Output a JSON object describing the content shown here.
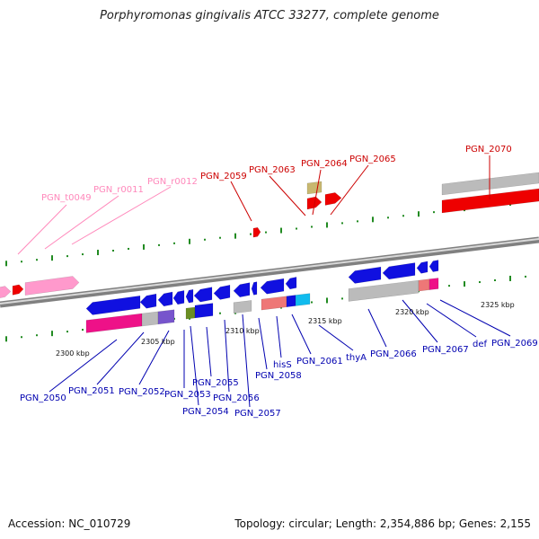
{
  "title": "Porphyromonas gingivalis ATCC 33277, complete genome",
  "footer": {
    "accession": "Accession: NC_010729",
    "summary": "Topology: circular; Length: 2,354,886 bp; Genes: 2,155"
  },
  "colors": {
    "backbone": "#808080",
    "forward_label": "#cc0000",
    "reverse_label": "#0000b0",
    "rna_label": "#ff88bb",
    "tick": "#228b22",
    "gene_blue": "#1010e0",
    "gene_red": "#ee0000",
    "gene_pink": "#ff99cc",
    "gene_gray": "#bbbbbb",
    "gene_magenta": "#ee1188"
  },
  "scale": {
    "unit": "kbp",
    "ticks": [
      "2300 kbp",
      "2305 kbp",
      "2310 kbp",
      "2315 kbp",
      "2320 kbp",
      "2325 kbp"
    ]
  },
  "forward_labels": [
    "PGN_2059",
    "PGN_2063",
    "PGN_2064",
    "PGN_2065",
    "PGN_2070"
  ],
  "rna_labels": [
    "PGN_t0049",
    "PGN_r0011",
    "PGN_r0012"
  ],
  "reverse_labels": [
    "PGN_2050",
    "PGN_2051",
    "PGN_2052",
    "PGN_2053",
    "PGN_2054",
    "PGN_2055",
    "PGN_2056",
    "PGN_2057",
    "PGN_2058",
    "hisS",
    "PGN_2061",
    "thyA",
    "PGN_2066",
    "PGN_2067",
    "def",
    "PGN_2069"
  ]
}
